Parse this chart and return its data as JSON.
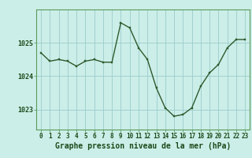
{
  "x": [
    0,
    1,
    2,
    3,
    4,
    5,
    6,
    7,
    8,
    9,
    10,
    11,
    12,
    13,
    14,
    15,
    16,
    17,
    18,
    19,
    20,
    21,
    22,
    23
  ],
  "y": [
    1024.7,
    1024.45,
    1024.5,
    1024.45,
    1024.3,
    1024.45,
    1024.5,
    1024.42,
    1024.42,
    1025.6,
    1025.45,
    1024.85,
    1024.5,
    1023.65,
    1023.05,
    1022.8,
    1022.85,
    1023.05,
    1023.7,
    1024.1,
    1024.35,
    1024.85,
    1025.1,
    1025.1
  ],
  "line_color": "#2d5a2d",
  "marker_color": "#2d5a2d",
  "bg_color": "#cceee8",
  "grid_color": "#99cccc",
  "xlabel": "Graphe pression niveau de la mer (hPa)",
  "xlabel_fontsize": 7.0,
  "ylabel_ticks": [
    1023,
    1024,
    1025
  ],
  "ylim": [
    1022.4,
    1026.0
  ],
  "xlim": [
    -0.5,
    23.5
  ],
  "title_color": "#1a4a1a",
  "axis_color": "#5a9a5a",
  "tick_label_color": "#1a4a1a",
  "tick_fontsize": 5.5
}
